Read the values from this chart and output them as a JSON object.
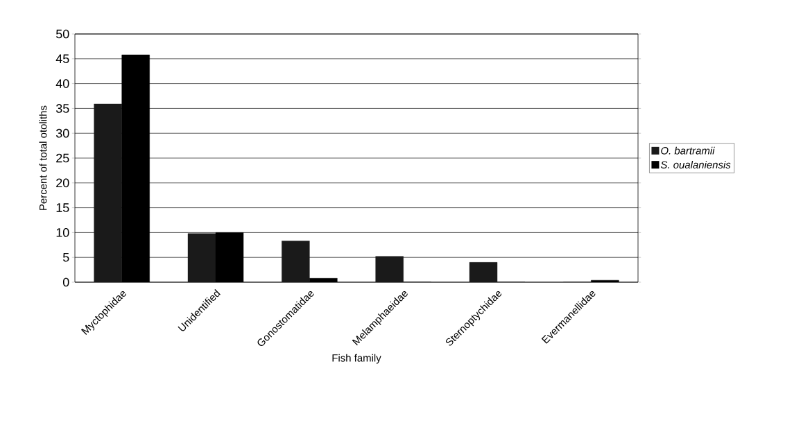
{
  "chart_data": {
    "type": "bar",
    "xlabel": "Fish family",
    "ylabel": "Percent of total otoliths",
    "categories": [
      "Myctophidae",
      "Unidentified",
      "Gonostomatidae",
      "Melamphaeidae",
      "Sternoptychidae",
      "Evermanellidae"
    ],
    "series": [
      {
        "name": "O. bartramii",
        "color": "#1a1a1a",
        "values": [
          35.9,
          9.8,
          8.3,
          5.2,
          4.0,
          0
        ]
      },
      {
        "name": "S. oualaniensis",
        "color": "#000000",
        "values": [
          45.8,
          10,
          0.8,
          0,
          0,
          0.4
        ]
      }
    ],
    "ylim": [
      0,
      50
    ],
    "yticks": [
      0,
      5,
      10,
      15,
      20,
      25,
      30,
      35,
      40,
      45,
      50
    ],
    "grid": "y",
    "legend": "right"
  }
}
